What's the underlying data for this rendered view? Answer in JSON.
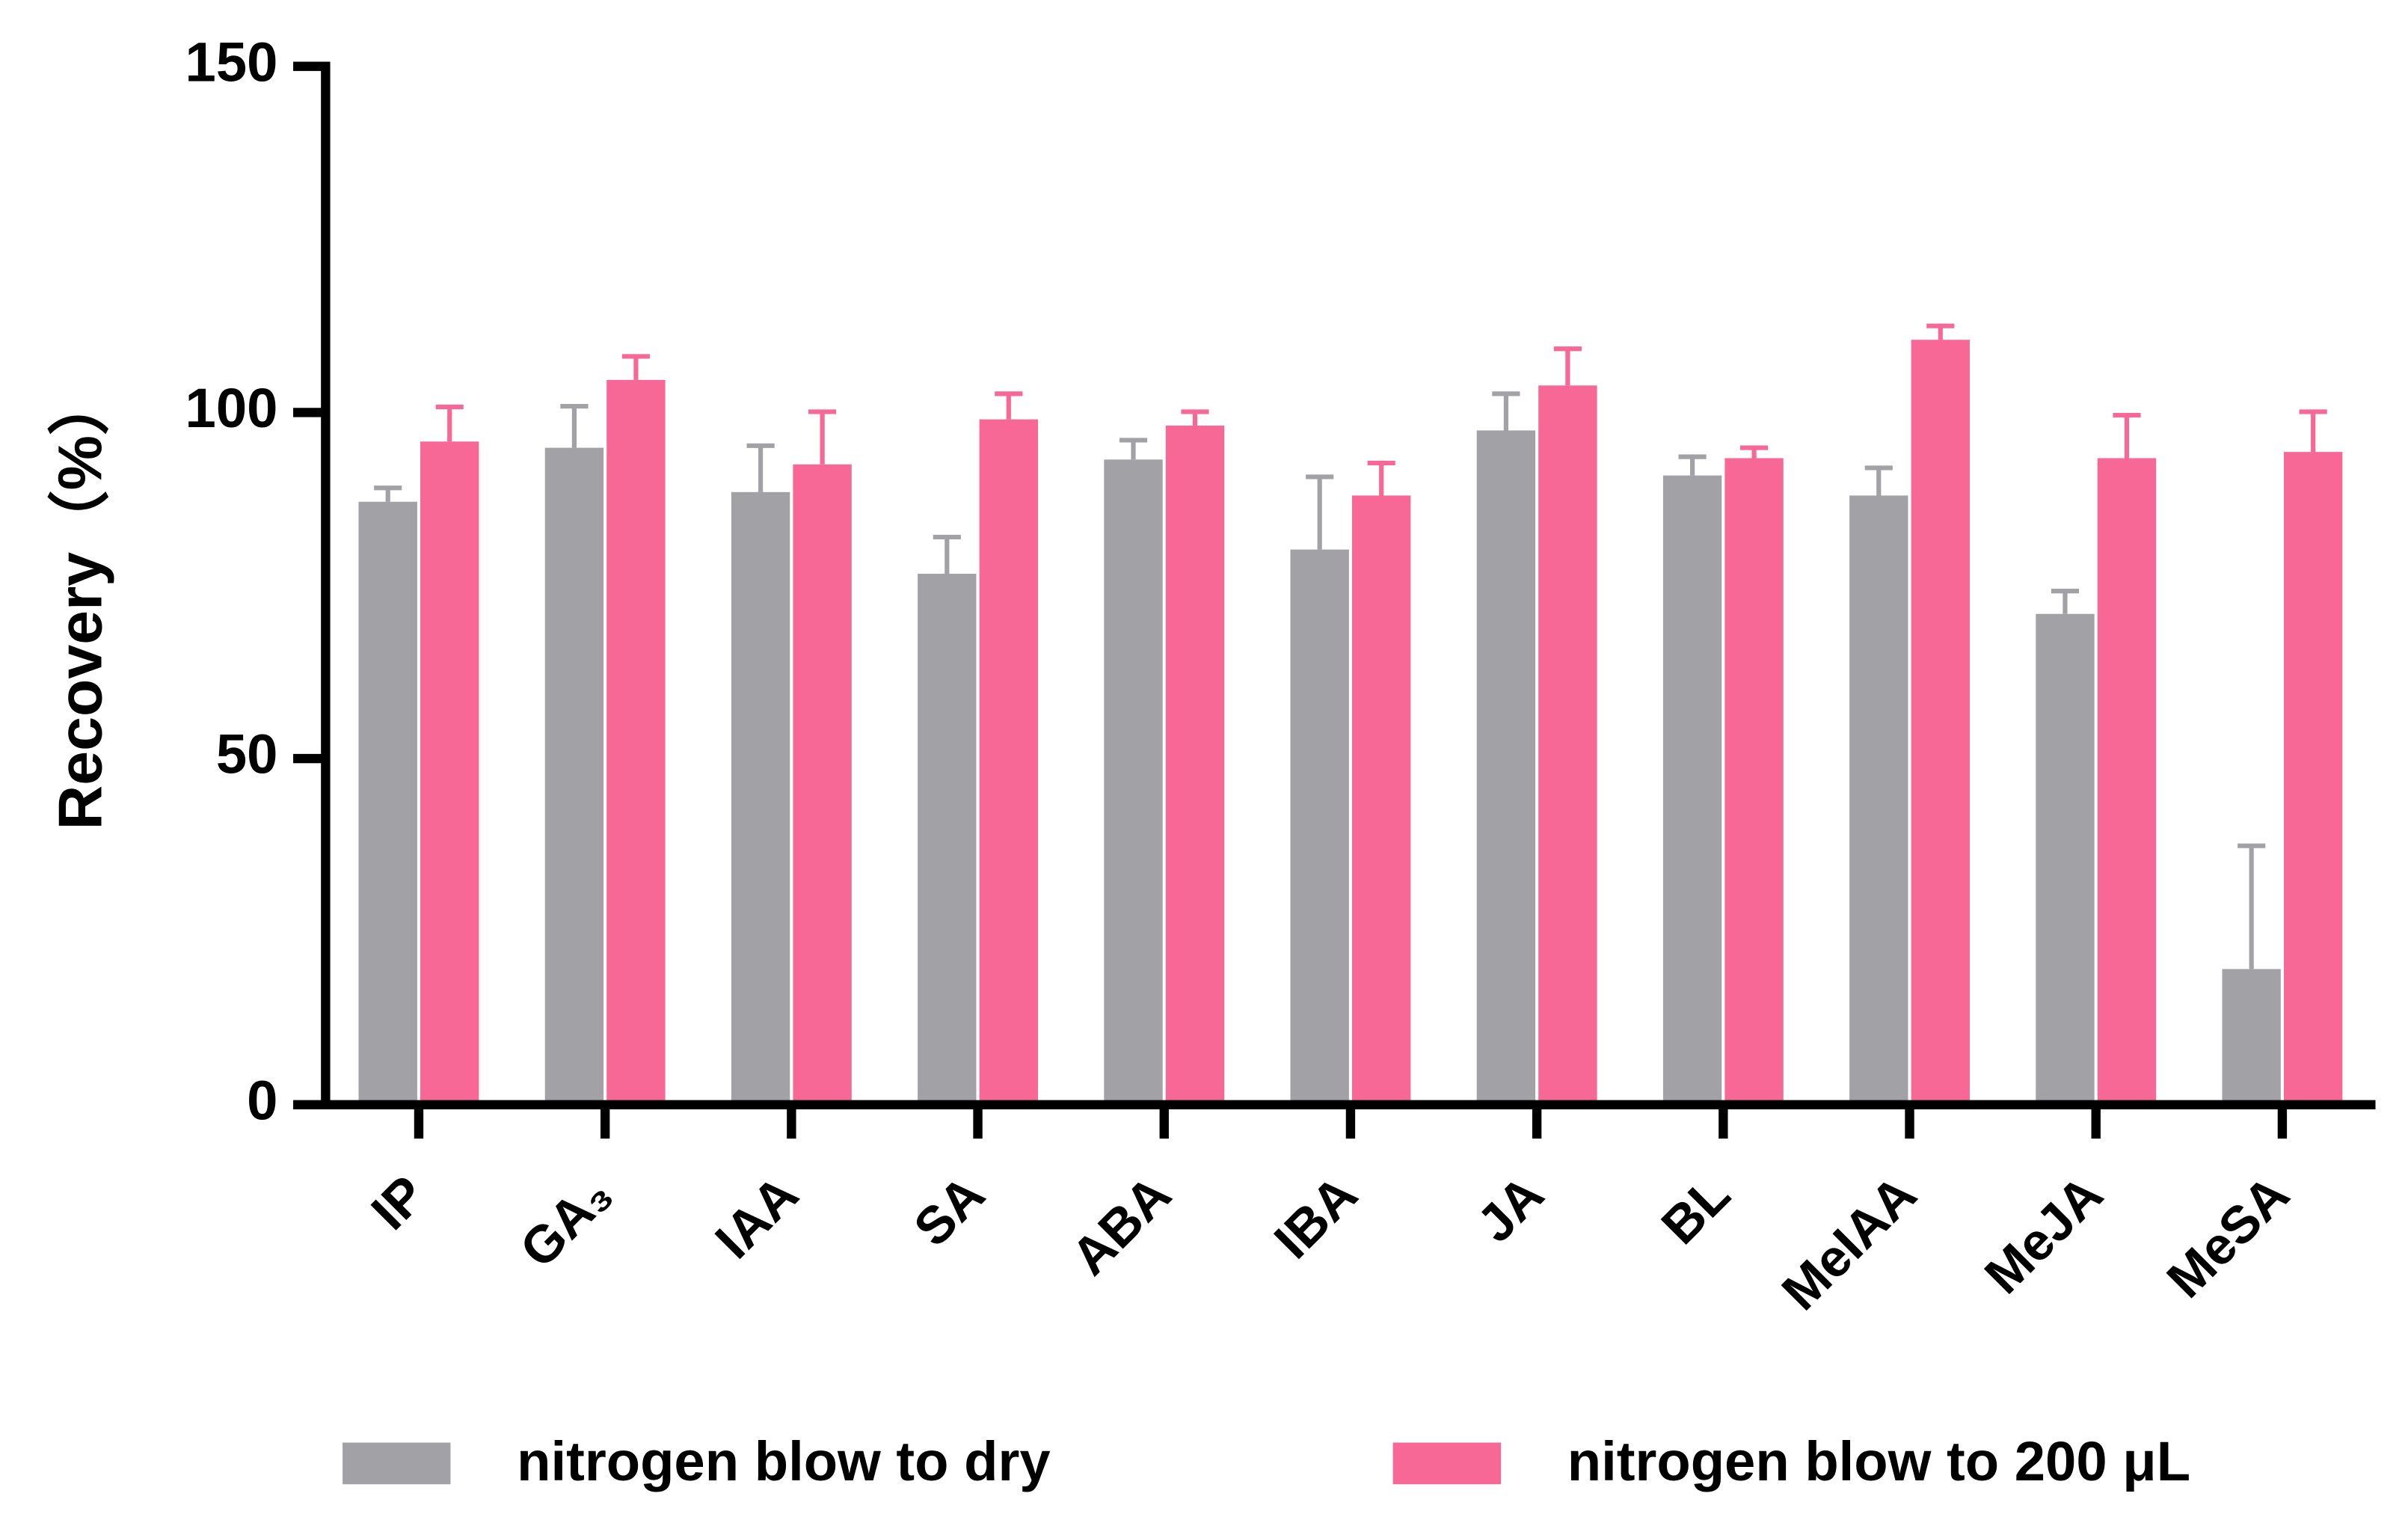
{
  "chart_data": {
    "type": "bar",
    "y_label": "Recovery（%）",
    "categories": [
      "IP",
      "GA₃",
      "IAA",
      "SA",
      "ABA",
      "IBA",
      "JA",
      "BL",
      "MeIAA",
      "MeJA",
      "MeSA"
    ],
    "series": [
      {
        "name": "nitrogen blow to dry",
        "color": "#a2a1a6",
        "values": [
          87.1,
          94.9,
          88.5,
          76.7,
          93.2,
          80.2,
          97.4,
          90.9,
          88.0,
          70.9,
          19.6
        ],
        "errors": [
          2.0,
          6.0,
          6.7,
          5.3,
          2.8,
          10.5,
          5.3,
          2.7,
          4.0,
          3.3,
          17.8
        ]
      },
      {
        "name": "nitrogen blow to 200 μL",
        "color": "#f76896",
        "values": [
          95.8,
          104.7,
          92.5,
          99.0,
          98.1,
          88.0,
          103.9,
          93.4,
          110.5,
          93.4,
          94.3
        ],
        "errors": [
          5.0,
          3.4,
          7.6,
          3.7,
          2.0,
          4.7,
          5.3,
          1.5,
          2.0,
          6.2,
          5.8
        ]
      }
    ],
    "ylim": [
      0,
      150
    ],
    "yticks": [
      0,
      50,
      100,
      150
    ],
    "legend": "bottom"
  }
}
